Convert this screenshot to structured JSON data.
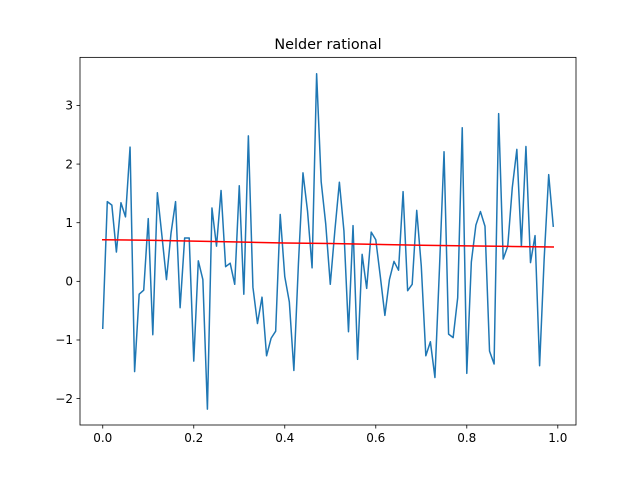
{
  "chart_data": {
    "type": "line",
    "title": "Nelder rational",
    "xlabel": "",
    "ylabel": "",
    "xlim": [
      -0.05,
      1.04
    ],
    "ylim": [
      -2.45,
      3.82
    ],
    "grid": false,
    "legend": "none",
    "x_ticks": [
      0.0,
      0.2,
      0.4,
      0.6,
      0.8,
      1.0
    ],
    "x_tick_labels": [
      "0.0",
      "0.2",
      "0.4",
      "0.6",
      "0.8",
      "1.0"
    ],
    "y_ticks": [
      -2,
      -1,
      0,
      1,
      2,
      3
    ],
    "y_tick_labels": [
      "−2",
      "−1",
      "0",
      "1",
      "2",
      "3"
    ],
    "series": [
      {
        "kind": "data",
        "color": "#1f77b4",
        "x": [
          0.0,
          0.01,
          0.02,
          0.03,
          0.04,
          0.05,
          0.06,
          0.07,
          0.08,
          0.09,
          0.1,
          0.11,
          0.12,
          0.13,
          0.14,
          0.15,
          0.16,
          0.17,
          0.18,
          0.19,
          0.2,
          0.21,
          0.22,
          0.23,
          0.24,
          0.25,
          0.26,
          0.27,
          0.28,
          0.29,
          0.3,
          0.31,
          0.32,
          0.33,
          0.34,
          0.35,
          0.36,
          0.37,
          0.38,
          0.39,
          0.4,
          0.41,
          0.42,
          0.43,
          0.44,
          0.45,
          0.46,
          0.47,
          0.48,
          0.49,
          0.5,
          0.51,
          0.52,
          0.53,
          0.54,
          0.55,
          0.56,
          0.57,
          0.58,
          0.59,
          0.6,
          0.61,
          0.62,
          0.63,
          0.64,
          0.65,
          0.66,
          0.67,
          0.68,
          0.69,
          0.7,
          0.71,
          0.72,
          0.73,
          0.74,
          0.75,
          0.76,
          0.77,
          0.78,
          0.79,
          0.8,
          0.81,
          0.82,
          0.83,
          0.84,
          0.85,
          0.86,
          0.87,
          0.88,
          0.89,
          0.9,
          0.91,
          0.92,
          0.93,
          0.94,
          0.95,
          0.96,
          0.97,
          0.98,
          0.99
        ],
        "y": [
          -0.8,
          1.36,
          1.3,
          0.5,
          1.34,
          1.1,
          2.29,
          -1.54,
          -0.22,
          -0.15,
          1.07,
          -0.91,
          1.51,
          0.78,
          0.03,
          0.82,
          1.36,
          -0.45,
          0.74,
          0.74,
          -1.36,
          0.35,
          0.03,
          -2.18,
          1.25,
          0.6,
          1.55,
          0.25,
          0.31,
          -0.05,
          1.63,
          -0.22,
          2.48,
          -0.1,
          -0.72,
          -0.27,
          -1.27,
          -0.97,
          -0.85,
          1.14,
          0.08,
          -0.35,
          -1.52,
          0.3,
          1.85,
          1.2,
          0.23,
          3.54,
          1.7,
          0.98,
          -0.05,
          0.86,
          1.69,
          0.86,
          -0.86,
          0.95,
          -1.33,
          0.46,
          -0.12,
          0.84,
          0.71,
          0.08,
          -0.58,
          0.03,
          0.34,
          0.19,
          1.53,
          -0.16,
          -0.05,
          1.21,
          0.26,
          -1.27,
          -1.03,
          -1.64,
          0.23,
          2.21,
          -0.9,
          -0.96,
          -0.28,
          2.62,
          -1.57,
          0.33,
          0.96,
          1.19,
          0.94,
          -1.19,
          -1.41,
          2.86,
          0.38,
          0.6,
          1.6,
          2.25,
          0.6,
          2.3,
          0.32,
          0.78,
          -1.44,
          0.38,
          1.82,
          0.94
        ]
      },
      {
        "kind": "fit",
        "color": "#ff0000",
        "x": [
          0.0,
          0.1,
          0.2,
          0.3,
          0.4,
          0.5,
          0.6,
          0.7,
          0.8,
          0.9,
          0.99
        ],
        "y": [
          0.71,
          0.7,
          0.685,
          0.67,
          0.655,
          0.645,
          0.63,
          0.615,
          0.605,
          0.595,
          0.585
        ]
      }
    ]
  }
}
